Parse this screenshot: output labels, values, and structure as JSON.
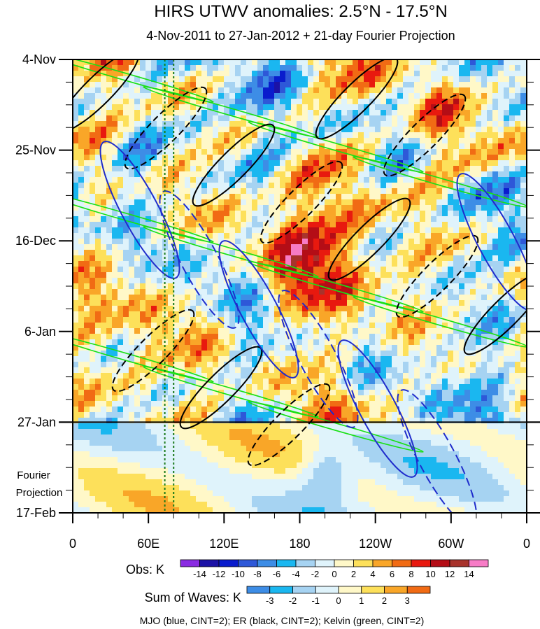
{
  "chart_data": {
    "type": "heatmap",
    "title": "HIRS UTWV anomalies: 2.5°N - 17.5°N",
    "subtitle": "4-Nov-2011 to 27-Jan-2012 + 21-day Fourier Projection",
    "x_ticks": [
      "0",
      "60E",
      "120E",
      "180",
      "120W",
      "60W",
      "0"
    ],
    "x_range": [
      0,
      360
    ],
    "y_ticks": [
      "4-Nov",
      "25-Nov",
      "16-Dec",
      "6-Jan",
      "27-Jan",
      "17-Feb"
    ],
    "y_range_days": [
      0,
      105
    ],
    "obs_end_day": 84,
    "projection_label_line1": "Fourier",
    "projection_label_line2": "Projection",
    "obs_colorbar": {
      "label": "Obs: K",
      "levels": [
        "-14",
        "-12",
        "-10",
        "-8",
        "-6",
        "-4",
        "-2",
        "0",
        "2",
        "4",
        "6",
        "8",
        "10",
        "12",
        "14"
      ],
      "colors": [
        "#8a2be2",
        "#1c12a6",
        "#0a1ccd",
        "#2e58d8",
        "#3d8de6",
        "#1ab7f0",
        "#a6d3f2",
        "#dff3fb",
        "#fff8c8",
        "#fde05a",
        "#f9a628",
        "#f16b14",
        "#e8190f",
        "#b40d16",
        "#a8332c",
        "#f77cc6"
      ]
    },
    "waves_colorbar": {
      "label": "Sum of Waves: K",
      "levels": [
        "-3",
        "-2",
        "-1",
        "0",
        "1",
        "2",
        "3"
      ],
      "colors": [
        "#3d8de6",
        "#1ab7f0",
        "#a6d3f2",
        "#dff3fb",
        "#fff8c8",
        "#fde05a",
        "#f9a628",
        "#f16b14"
      ]
    },
    "footer": "MJO (blue, CINT=2); ER (black, CINT=2); Kelvin (green, CINT=2)",
    "contour_colors": {
      "mjo": "#1f2ccc",
      "er": "#000000",
      "kelvin": "#19e014",
      "vertical_lines": "#1a7a1a"
    },
    "vertical_lines_lon": [
      73,
      80
    ]
  }
}
